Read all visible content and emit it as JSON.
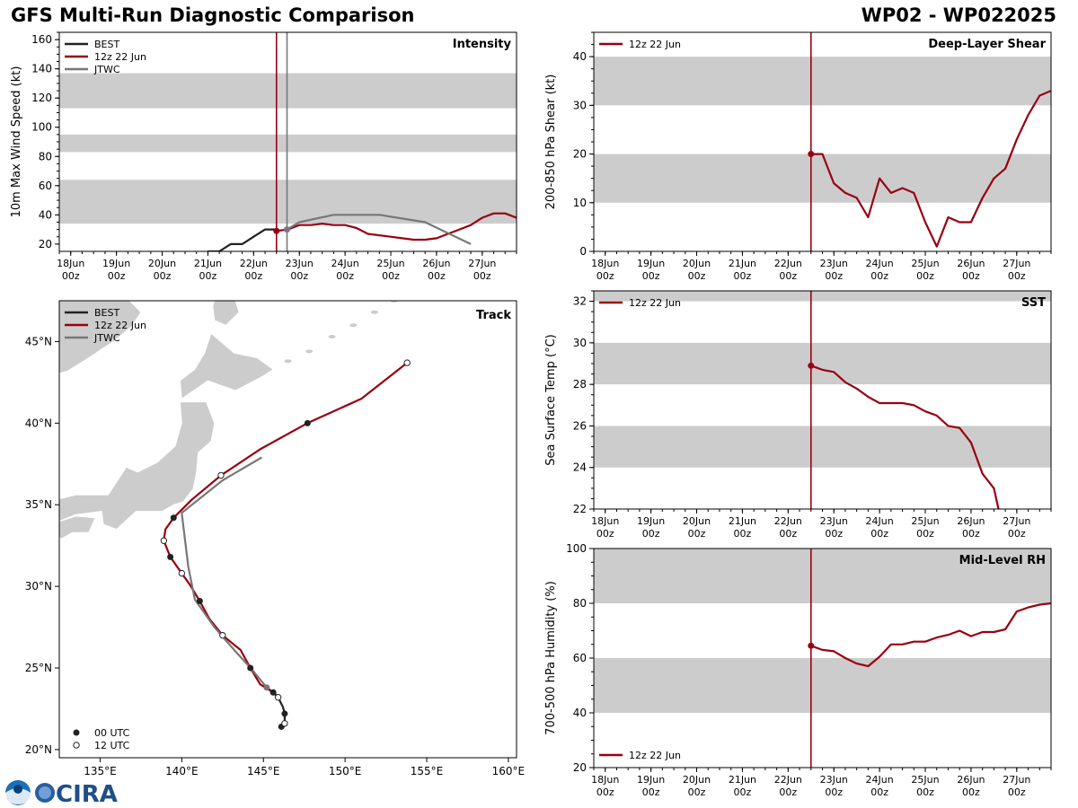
{
  "header": {
    "title_left": "GFS Multi-Run Diagnostic Comparison",
    "title_right": "WP02 - WP022025"
  },
  "logos": {
    "cira_text": "CIRA"
  },
  "colors": {
    "best": "#222222",
    "run": "#990011",
    "jtwc": "#777777",
    "band": "#cccccc",
    "land": "#cccccc"
  },
  "time_axis": {
    "ticks": [
      {
        "t": 0,
        "label1": "18Jun",
        "label2": "00z"
      },
      {
        "t": 1,
        "label1": "19Jun",
        "label2": "00z"
      },
      {
        "t": 2,
        "label1": "20Jun",
        "label2": "00z"
      },
      {
        "t": 3,
        "label1": "21Jun",
        "label2": "00z"
      },
      {
        "t": 4,
        "label1": "22Jun",
        "label2": "00z"
      },
      {
        "t": 5,
        "label1": "23Jun",
        "label2": "00z"
      },
      {
        "t": 6,
        "label1": "24Jun",
        "label2": "00z"
      },
      {
        "t": 7,
        "label1": "25Jun",
        "label2": "00z"
      },
      {
        "t": 8,
        "label1": "26Jun",
        "label2": "00z"
      },
      {
        "t": 9,
        "label1": "27Jun",
        "label2": "00z"
      }
    ],
    "range": [
      -0.25,
      9.75
    ]
  },
  "chart_data": [
    {
      "id": "intensity",
      "type": "line",
      "title": "Intensity",
      "ylabel": "10m Max Wind Speed (kt)",
      "ylim": [
        15,
        165
      ],
      "yticks": [
        20,
        40,
        60,
        80,
        100,
        120,
        140,
        160
      ],
      "bands": [
        [
          34,
          64
        ],
        [
          83,
          95
        ],
        [
          113,
          137
        ]
      ],
      "legend": [
        "BEST",
        "12z 22 Jun",
        "JTWC"
      ],
      "vlines": [
        {
          "t": 4.5,
          "series": "run"
        },
        {
          "t": 4.73,
          "series": "jtwc"
        }
      ],
      "series": [
        {
          "name": "BEST",
          "key": "best",
          "x": [
            3.0,
            3.25,
            3.5,
            3.75,
            4.0,
            4.25,
            4.5
          ],
          "y": [
            15,
            15,
            20,
            20,
            25,
            30,
            30
          ]
        },
        {
          "name": "12z 22 Jun",
          "key": "run",
          "x": [
            4.5,
            4.75,
            5.0,
            5.25,
            5.5,
            5.75,
            6.0,
            6.25,
            6.5,
            7.0,
            7.25,
            7.5,
            7.75,
            8.0,
            8.25,
            8.5,
            8.75,
            9.0,
            9.25,
            9.5,
            9.75
          ],
          "y": [
            29,
            30,
            33,
            33,
            34,
            33,
            33,
            31,
            27,
            25,
            24,
            23,
            23,
            24,
            27,
            30,
            33,
            38,
            41,
            41,
            38
          ]
        },
        {
          "name": "JTWC",
          "key": "jtwc",
          "x": [
            4.73,
            5.0,
            5.75,
            6.75,
            7.75,
            8.75
          ],
          "y": [
            30,
            35,
            40,
            40,
            35,
            20
          ]
        }
      ],
      "markers": [
        {
          "series": "run",
          "t": 4.5,
          "v": 29
        },
        {
          "series": "jtwc",
          "t": 4.73,
          "v": 30
        }
      ]
    },
    {
      "id": "shear",
      "type": "line",
      "title": "Deep-Layer Shear",
      "ylabel": "200-850 hPa Shear (kt)",
      "ylim": [
        0,
        45
      ],
      "yticks": [
        0,
        10,
        20,
        30,
        40
      ],
      "bands": [
        [
          10,
          20
        ],
        [
          30,
          40
        ]
      ],
      "legend": [
        "12z 22 Jun"
      ],
      "vlines": [
        {
          "t": 4.5,
          "series": "run"
        }
      ],
      "series": [
        {
          "name": "12z 22 Jun",
          "key": "run",
          "x": [
            4.5,
            4.75,
            5.0,
            5.25,
            5.5,
            5.75,
            6.0,
            6.25,
            6.5,
            6.75,
            7.0,
            7.25,
            7.5,
            7.75,
            8.0,
            8.25,
            8.5,
            8.75,
            9.0,
            9.25,
            9.5,
            9.75
          ],
          "y": [
            20,
            20,
            14,
            12,
            11,
            7,
            15,
            12,
            13,
            12,
            6,
            1,
            7,
            6,
            6,
            11,
            15,
            17,
            23,
            28,
            32,
            33
          ]
        }
      ],
      "markers": [
        {
          "series": "run",
          "t": 4.5,
          "v": 20
        }
      ]
    },
    {
      "id": "sst",
      "type": "line",
      "title": "SST",
      "ylabel": "Sea Surface Temp (°C)",
      "ylim": [
        22,
        32.5
      ],
      "yticks": [
        22,
        24,
        26,
        28,
        30,
        32
      ],
      "bands": [
        [
          24,
          26
        ],
        [
          28,
          30
        ],
        [
          32,
          32.5
        ]
      ],
      "legend": [
        "12z 22 Jun"
      ],
      "vlines": [
        {
          "t": 4.5,
          "series": "run"
        }
      ],
      "series": [
        {
          "name": "12z 22 Jun",
          "key": "run",
          "x": [
            4.5,
            4.75,
            5.0,
            5.25,
            5.5,
            5.75,
            6.0,
            6.25,
            6.5,
            6.75,
            7.0,
            7.25,
            7.5,
            7.75,
            8.0,
            8.25,
            8.5,
            8.6
          ],
          "y": [
            28.9,
            28.7,
            28.6,
            28.1,
            27.8,
            27.4,
            27.1,
            27.1,
            27.1,
            27.0,
            26.7,
            26.5,
            26.0,
            25.9,
            25.2,
            23.7,
            23.0,
            22.0
          ]
        }
      ],
      "markers": [
        {
          "series": "run",
          "t": 4.5,
          "v": 28.9
        }
      ]
    },
    {
      "id": "rh",
      "type": "line",
      "title": "Mid-Level RH",
      "ylabel": "700-500 hPa Humidity (%)",
      "ylim": [
        20,
        100
      ],
      "yticks": [
        20,
        40,
        60,
        80,
        100
      ],
      "bands": [
        [
          40,
          60
        ],
        [
          80,
          100
        ]
      ],
      "legend": [
        "12z 22 Jun"
      ],
      "vlines": [
        {
          "t": 4.5,
          "series": "run"
        }
      ],
      "series": [
        {
          "name": "12z 22 Jun",
          "key": "run",
          "x": [
            4.5,
            4.75,
            5.0,
            5.25,
            5.5,
            5.75,
            6.0,
            6.25,
            6.5,
            6.75,
            7.0,
            7.25,
            7.5,
            7.75,
            8.0,
            8.25,
            8.5,
            8.75,
            9.0,
            9.25,
            9.5,
            9.75
          ],
          "y": [
            64.5,
            63,
            62.5,
            60,
            58,
            57,
            60.5,
            65,
            65,
            66,
            66,
            67.5,
            68.5,
            70,
            68,
            69.5,
            69.5,
            70.5,
            77,
            78.5,
            79.5,
            80
          ]
        }
      ],
      "markers": [
        {
          "series": "run",
          "t": 4.5,
          "v": 64.5
        }
      ]
    },
    {
      "id": "track",
      "type": "scatter",
      "title": "Track",
      "lon_range": [
        132.5,
        160.5
      ],
      "lat_range": [
        19.5,
        47.5
      ],
      "xticks": [
        {
          "v": 135,
          "label": "135°E"
        },
        {
          "v": 140,
          "label": "140°E"
        },
        {
          "v": 145,
          "label": "145°E"
        },
        {
          "v": 150,
          "label": "150°E"
        },
        {
          "v": 155,
          "label": "155°E"
        },
        {
          "v": 160,
          "label": "160°E"
        }
      ],
      "yticks": [
        {
          "v": 20,
          "label": "20°N"
        },
        {
          "v": 25,
          "label": "25°N"
        },
        {
          "v": 30,
          "label": "30°N"
        },
        {
          "v": 35,
          "label": "35°N"
        },
        {
          "v": 40,
          "label": "40°N"
        },
        {
          "v": 45,
          "label": "45°N"
        }
      ],
      "legend": [
        "BEST",
        "12z 22 Jun",
        "JTWC"
      ],
      "marker_legend": [
        "00 UTC",
        "12 UTC"
      ],
      "series": [
        {
          "name": "BEST",
          "key": "best",
          "points": [
            [
              146.1,
              21.4
            ],
            [
              146.3,
              21.6
            ],
            [
              146.3,
              22.2
            ],
            [
              146.2,
              22.6
            ],
            [
              145.9,
              23.2
            ],
            [
              145.6,
              23.5
            ],
            [
              145.2,
              23.8
            ]
          ],
          "markers": [
            {
              "i": 0,
              "type": "00"
            },
            {
              "i": 1,
              "type": "12"
            },
            {
              "i": 2,
              "type": "00"
            },
            {
              "i": 4,
              "type": "12"
            }
          ]
        },
        {
          "name": "12z 22 Jun",
          "key": "run",
          "points": [
            [
              145.6,
              23.5
            ],
            [
              144.8,
              24.0
            ],
            [
              144.2,
              25.0
            ],
            [
              143.6,
              26.1
            ],
            [
              142.5,
              27.0
            ],
            [
              141.7,
              28.0
            ],
            [
              141.1,
              29.1
            ],
            [
              140.5,
              30.1
            ],
            [
              140.0,
              30.8
            ],
            [
              139.3,
              31.8
            ],
            [
              138.9,
              32.8
            ],
            [
              139.0,
              33.5
            ],
            [
              139.5,
              34.2
            ],
            [
              140.6,
              35.3
            ],
            [
              142.4,
              36.8
            ],
            [
              144.8,
              38.4
            ],
            [
              147.7,
              40.0
            ],
            [
              151.0,
              41.5
            ],
            [
              153.8,
              43.7
            ]
          ],
          "markers": [
            {
              "i": 0,
              "type": "00"
            },
            {
              "i": 2,
              "type": "00"
            },
            {
              "i": 4,
              "type": "12"
            },
            {
              "i": 6,
              "type": "00"
            },
            {
              "i": 8,
              "type": "12"
            },
            {
              "i": 9,
              "type": "00"
            },
            {
              "i": 10,
              "type": "12"
            },
            {
              "i": 12,
              "type": "00"
            },
            {
              "i": 14,
              "type": "12"
            },
            {
              "i": 16,
              "type": "00"
            },
            {
              "i": 18,
              "type": "12"
            }
          ]
        },
        {
          "name": "JTWC",
          "key": "jtwc",
          "points": [
            [
              145.2,
              23.8
            ],
            [
              144.3,
              24.9
            ],
            [
              143.3,
              26.0
            ],
            [
              142.0,
              27.5
            ],
            [
              140.8,
              29.2
            ],
            [
              140.4,
              31.2
            ],
            [
              140.0,
              34.5
            ],
            [
              142.5,
              36.5
            ],
            [
              144.9,
              37.9
            ]
          ],
          "markers": [
            {
              "i": 0,
              "type": "jtwc"
            }
          ]
        }
      ]
    }
  ]
}
